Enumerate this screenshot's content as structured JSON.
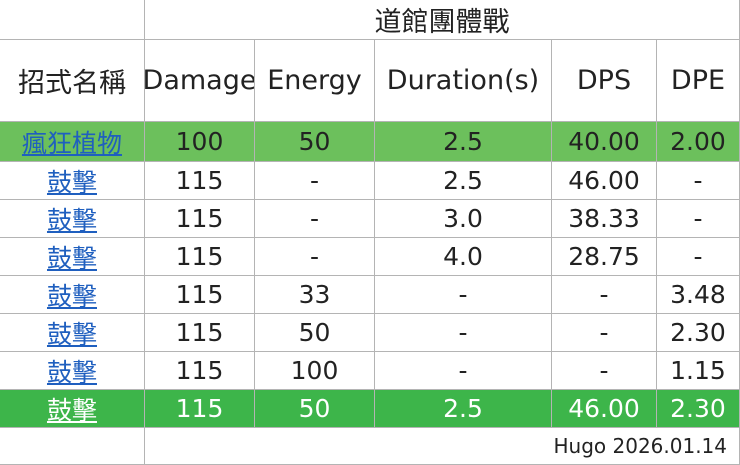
{
  "title": "道館團體戰",
  "header": [
    "招式名稱",
    "Damage",
    "Energy",
    "Duration(s)",
    "DPS",
    "DPE"
  ],
  "rows": [
    [
      "瘋狂植物",
      "100",
      "50",
      "2.5",
      "40.00",
      "2.00"
    ],
    [
      "鼓擊",
      "115",
      "-",
      "2.5",
      "46.00",
      "-"
    ],
    [
      "鼓擊",
      "115",
      "-",
      "3.0",
      "38.33",
      "-"
    ],
    [
      "鼓擊",
      "115",
      "-",
      "4.0",
      "28.75",
      "-"
    ],
    [
      "鼓擊",
      "115",
      "33",
      "-",
      "-",
      "3.48"
    ],
    [
      "鼓擊",
      "115",
      "50",
      "-",
      "-",
      "2.30"
    ],
    [
      "鼓擊",
      "115",
      "100",
      "-",
      "-",
      "1.15"
    ],
    [
      "鼓擊",
      "115",
      "50",
      "2.5",
      "46.00",
      "2.30"
    ]
  ],
  "footer": "Hugo 2026.01.14"
}
